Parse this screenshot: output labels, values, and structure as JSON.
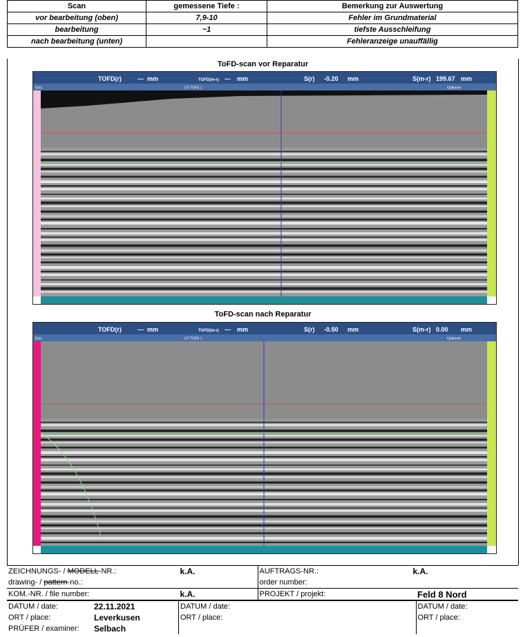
{
  "table": {
    "header": [
      "Scan",
      "gemessene Tiefe :",
      "Bemerkung zur Auswertung"
    ],
    "rows": [
      {
        "label": "vor bearbeitung (oben)",
        "depth": "7,9-10",
        "remark": "Fehler im Grundmaterial"
      },
      {
        "label": "bearbeitung",
        "depth": "~1",
        "remark": "tiefste Ausschleifung"
      },
      {
        "label": "nach bearbeitung (unten)",
        "remark": "Fehleranzeige unauffällig"
      }
    ]
  },
  "scans": [
    {
      "title": "ToFD-scan vor Reparatur",
      "tofd_r": "TOFD(r)",
      "tofd_mr": "TOFD(m-r)",
      "dashes": "---",
      "unit": "mm",
      "s_r": "S(r)",
      "s_r_value": "-0.20",
      "s_mr": "S(m-r)",
      "s_mr_value": "199.67",
      "menu": [
        "Eins",
        "UT TOFD 1",
        "Optionen"
      ]
    },
    {
      "title": "ToFD-scan nach Reparatur",
      "tofd_r": "TOFD(r)",
      "tofd_mr": "TOFD(m-r)",
      "dashes": "---",
      "unit": "mm",
      "s_r": "S(r)",
      "s_r_value": "-0.50",
      "s_mr": "S(m-r)",
      "s_mr_value": "0.00",
      "menu": [
        "Eins",
        "UT TOFD 1",
        "Optionen"
      ]
    }
  ],
  "footer": {
    "drawing_label": {
      "a": "ZEICHNUNGS- / ",
      "struck": "MODELL",
      "b": "-NR.:"
    },
    "drawing_value": "k.A.",
    "order_label": "AUFTRAGS-NR.:",
    "order_value": "k.A.",
    "drawing_label_en": {
      "a": "drawing- / ",
      "struck": "pattern",
      "b": "-no.:"
    },
    "order_label_en": "order number:",
    "file_label": "KOM.-NR. / file number:",
    "file_value": "k.A.",
    "project_label": "PROJEKT / projekt:",
    "project_value": "Feld 8 Nord",
    "date_label": "DATUM / date:",
    "date_value": "22.11.2021",
    "place_label": "ORT / place:",
    "place_value": "Leverkusen",
    "examiner_label": "PRÜFER / examiner:",
    "examiner_value": "Selbach"
  }
}
